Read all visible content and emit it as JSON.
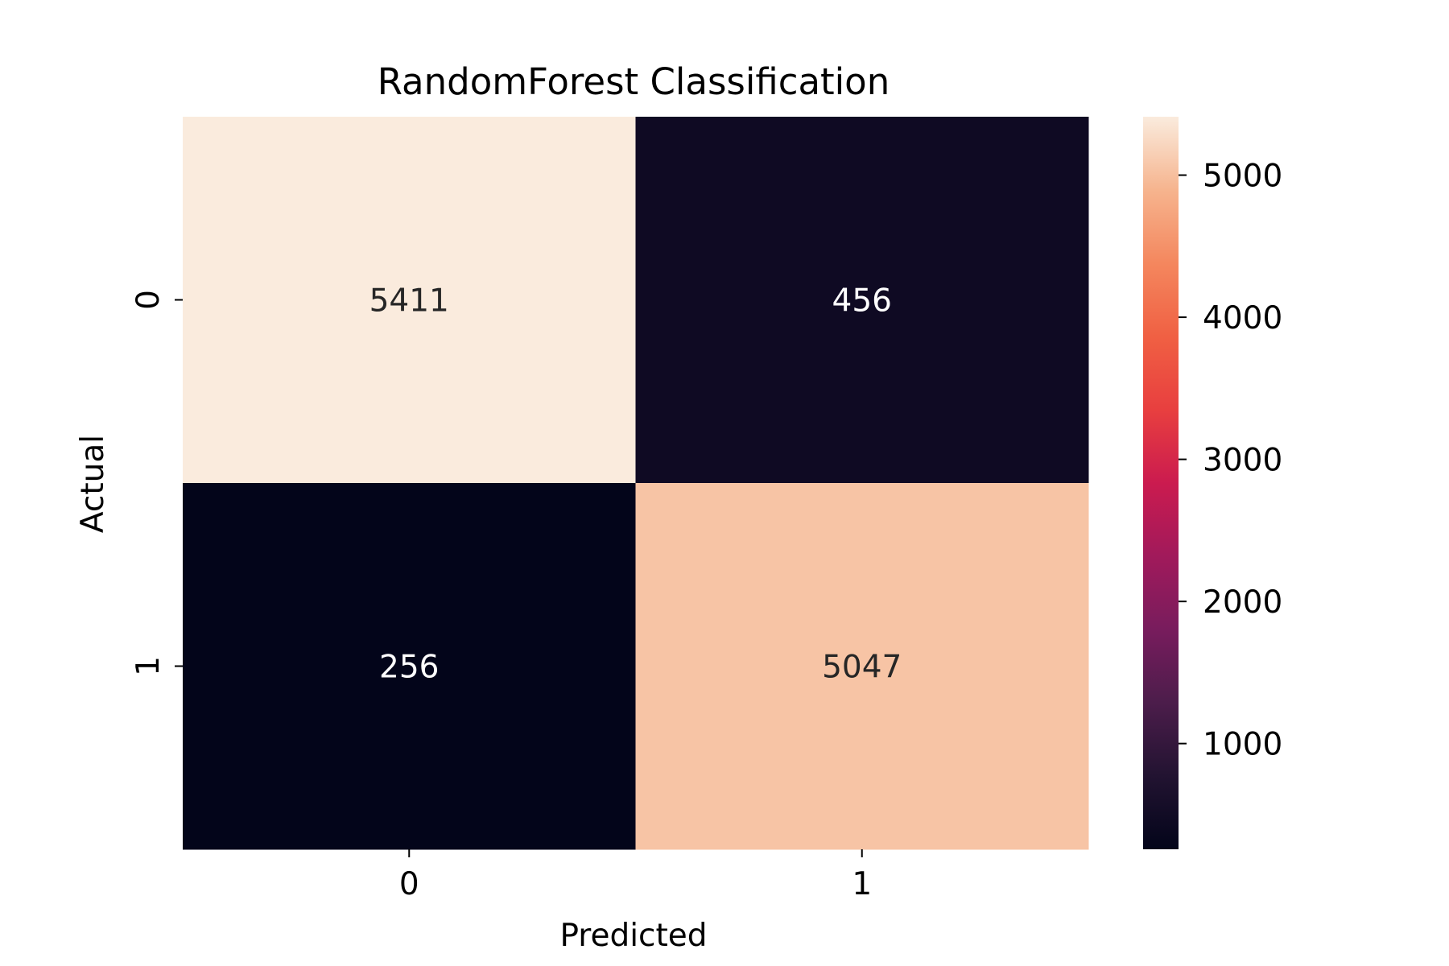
{
  "chart_data": {
    "type": "heatmap",
    "title": "RandomForest Classification",
    "xlabel": "Predicted",
    "ylabel": "Actual",
    "x_categories": [
      "0",
      "1"
    ],
    "y_categories": [
      "0",
      "1"
    ],
    "values": [
      [
        5411,
        456
      ],
      [
        256,
        5047
      ]
    ],
    "colorbar": {
      "colormap": "rocket",
      "range": [
        256,
        5411
      ],
      "ticks": [
        1000,
        2000,
        3000,
        4000,
        5000
      ],
      "tick_labels": [
        "1000",
        "2000",
        "3000",
        "4000",
        "5000"
      ]
    },
    "annotation_colors": {
      "on_light": "#262626",
      "on_dark": "#ffffff"
    }
  }
}
